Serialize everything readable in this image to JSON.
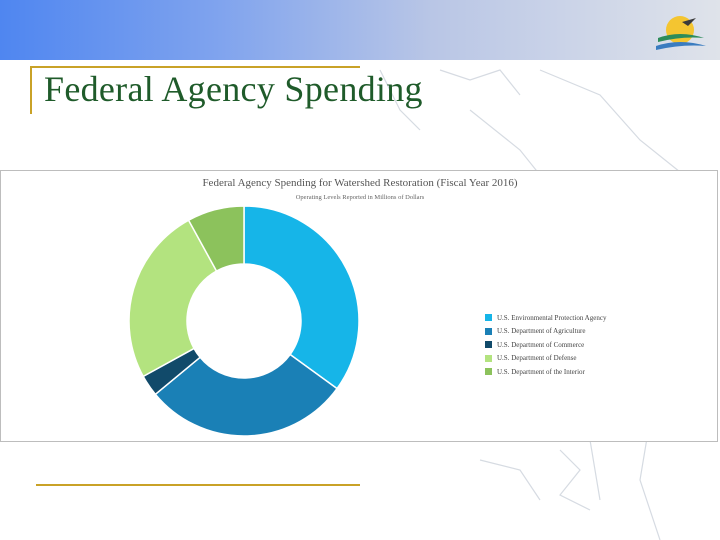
{
  "slide": {
    "title": "Federal Agency Spending"
  },
  "icons": {
    "logo": "bay-program-logo-icon",
    "background": "chesapeake-map-watermark"
  },
  "colors": {
    "accent_rule": "#c9a227",
    "title": "#1f5b2a"
  },
  "chart_data": {
    "type": "pie",
    "donut": true,
    "title": "Federal Agency Spending for Watershed Restoration (Fiscal Year 2016)",
    "subtitle": "Operating Levels Reported in Millions of Dollars",
    "legend_position": "right",
    "series": [
      {
        "name": "U.S. Environmental Protection Agency",
        "value": 35,
        "color": "#16b5e8"
      },
      {
        "name": "U.S. Department of Agriculture",
        "value": 29,
        "color": "#1a80b6"
      },
      {
        "name": "U.S. Department of Commerce",
        "value": 3,
        "color": "#114a6a"
      },
      {
        "name": "U.S. Department of Defense",
        "value": 25,
        "color": "#b3e37f"
      },
      {
        "name": "U.S. Department of the Interior",
        "value": 8,
        "color": "#8cc25c"
      }
    ]
  }
}
